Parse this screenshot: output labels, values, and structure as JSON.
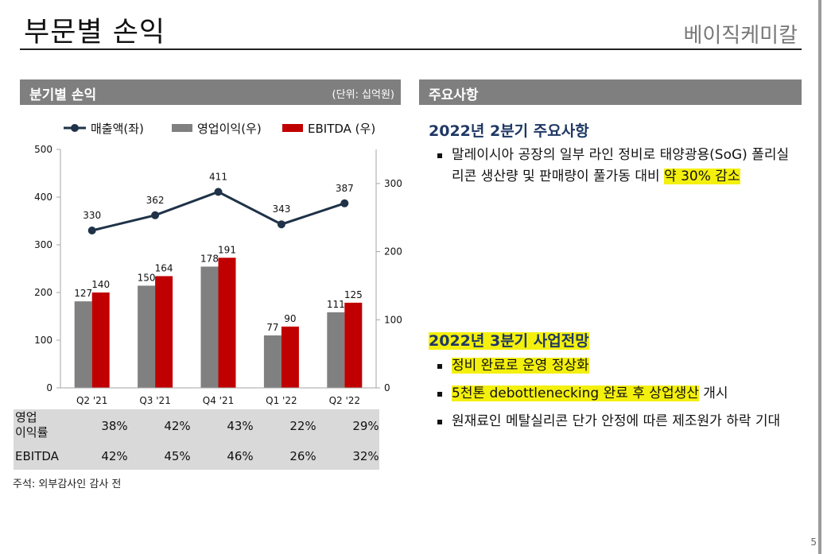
{
  "page": {
    "title": "부문별 손익",
    "company": "베이직케미칼",
    "page_number": "5"
  },
  "left_section": {
    "header": "분기별 손익",
    "unit": "(단위: 십억원)"
  },
  "right_section": {
    "header": "주요사항",
    "q2": {
      "title": "2022년 2분기 주요사항",
      "bullets": [
        {
          "pre": "말레이시아 공장의 일부 라인 정비로 태양광용(SoG) 폴리실리콘 생산량 및 판매량이 풀가동 대비 ",
          "hl": "약 30% 감소",
          "post": ""
        }
      ]
    },
    "q3": {
      "title": "2022년 3분기 사업전망",
      "bullets": [
        {
          "pre": "",
          "hl": "정비 완료로 운영 정상화",
          "post": ""
        },
        {
          "pre": "",
          "hl": "5천톤 debottlenecking 완료 후 상업생산",
          "post": " 개시"
        },
        {
          "pre": "원재료인 메탈실리콘 단가 안정에 따른 제조원가 하락 기대",
          "hl": "",
          "post": ""
        }
      ]
    }
  },
  "chart_data": {
    "type": "bar",
    "categories": [
      "Q2 '21",
      "Q3 '21",
      "Q4 '21",
      "Q1 '22",
      "Q2 '22"
    ],
    "series": [
      {
        "name": "매출액(좌)",
        "type": "line",
        "axis": "left",
        "color": "#1f3248",
        "values": [
          330,
          362,
          411,
          343,
          387
        ]
      },
      {
        "name": "영업이익(우)",
        "type": "bar",
        "axis": "right",
        "color": "#808080",
        "values": [
          127,
          150,
          178,
          77,
          111
        ]
      },
      {
        "name": "EBITDA (우)",
        "type": "bar",
        "axis": "right",
        "color": "#c00000",
        "values": [
          140,
          164,
          191,
          90,
          125
        ]
      }
    ],
    "left_axis": {
      "min": 0,
      "max": 500,
      "ticks": [
        "0",
        "100",
        "200",
        "300",
        "400",
        "500"
      ]
    },
    "right_axis": {
      "min": 0,
      "max": 350,
      "ticks": [
        "0",
        "100",
        "200",
        "300"
      ]
    }
  },
  "ratio_table": {
    "rows": [
      {
        "label": "영업\n이익률",
        "values": [
          "38%",
          "42%",
          "43%",
          "22%",
          "29%"
        ]
      },
      {
        "label": "EBITDA",
        "values": [
          "42%",
          "45%",
          "46%",
          "26%",
          "32%"
        ]
      }
    ]
  },
  "footnote": "주석: 외부감사인 감사 전"
}
